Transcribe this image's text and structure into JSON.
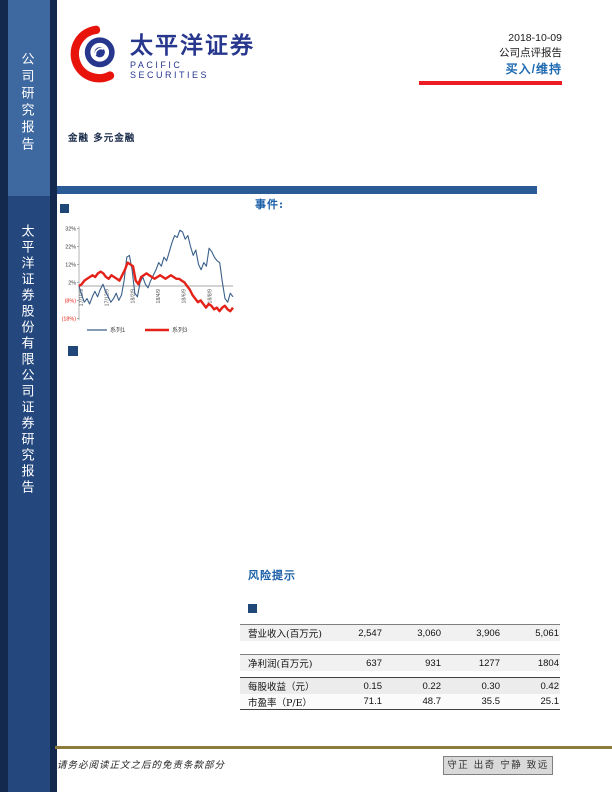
{
  "sidebar": {
    "top_label": "公司研究报告",
    "bottom_label": "太平洋证券股份有限公司证券研究报告"
  },
  "logo": {
    "cn_name": "太平洋证券",
    "en_name": "PACIFIC SECURITIES"
  },
  "header": {
    "date": "2018-10-09",
    "report_type": "公司点评报告",
    "rating": "买入/维持"
  },
  "industry": "金融 多元金融",
  "sections": {
    "event_heading": "事件:",
    "risk_heading": "风险提示"
  },
  "chart_data": {
    "type": "line",
    "title": "",
    "xlabel": "",
    "ylabel": "",
    "ylim": [
      -20,
      34
    ],
    "grid": false,
    "legend_position": "bottom",
    "y_ticks": [
      "32%",
      "22%",
      "12%",
      "2%",
      "(8%)",
      "(18%)"
    ],
    "y_tick_values": [
      32,
      22,
      12,
      2,
      -8,
      -18
    ],
    "x_ticks": [
      "17/10/9",
      "17/12/9",
      "18/2/9",
      "18/4/9",
      "18/6/9",
      "18/8/9"
    ],
    "series": [
      {
        "name": "系列1",
        "color": "#3A5F8A",
        "width": 1.1,
        "values": [
          0,
          -5,
          -9,
          -7,
          -10,
          -6,
          -3,
          -6,
          -2,
          1,
          -3,
          -6,
          -9,
          -7,
          -4,
          -8,
          -5,
          3,
          16,
          17,
          9,
          -4,
          -6,
          2,
          5,
          1,
          -1,
          3,
          6,
          9,
          13,
          11,
          16,
          14,
          19,
          24,
          28,
          27,
          31,
          30,
          26,
          28,
          22,
          17,
          20,
          12,
          9,
          13,
          11,
          21,
          19,
          16,
          14,
          13,
          2,
          -7,
          -9,
          -4,
          -6
        ]
      },
      {
        "name": "系列3",
        "color": "#E32219",
        "width": 2.4,
        "values": [
          0,
          1,
          3,
          4,
          5,
          6,
          5,
          7,
          8,
          7,
          5,
          4,
          6,
          5,
          4,
          3,
          6,
          9,
          13,
          12,
          11,
          3,
          1,
          5,
          6,
          7,
          6,
          5,
          4,
          5,
          6,
          5,
          4,
          5,
          6,
          5,
          4,
          4,
          3,
          2,
          0,
          -2,
          -5,
          -7,
          -9,
          -8,
          -10,
          -12,
          -10,
          -11,
          -13,
          -12,
          -14,
          -12,
          -11,
          -13,
          -14,
          -12
        ]
      }
    ]
  },
  "table": {
    "rows": [
      {
        "label": "营业收入(百万元)",
        "values": [
          "2,547",
          "3,060",
          "3,906",
          "5,061"
        ]
      },
      {
        "label": "净利润(百万元)",
        "values": [
          "637",
          "931",
          "1277",
          "1804"
        ]
      },
      {
        "label": "每股收益（元）",
        "values": [
          "0.15",
          "0.22",
          "0.30",
          "0.42"
        ]
      },
      {
        "label": "市盈率（P/E）",
        "values": [
          "71.1",
          "48.7",
          "35.5",
          "25.1"
        ]
      }
    ]
  },
  "footer": {
    "disclaimer": "请务必阅读正文之后的免责条款部分",
    "slogan": "守正 出奇 宁静 致远"
  },
  "colors": {
    "sidebar_bg": "#14294E",
    "sidebar_panel_top": "#3E68A0",
    "sidebar_panel_bottom": "#24477E",
    "brand_blue": "#28378E",
    "rating_blue": "#1E6AB2",
    "heading_blue": "#1A5FA8",
    "section_bar": "#2B5B95",
    "accent_red": "#EC1C24",
    "footer_gold": "#8E7C3B"
  }
}
